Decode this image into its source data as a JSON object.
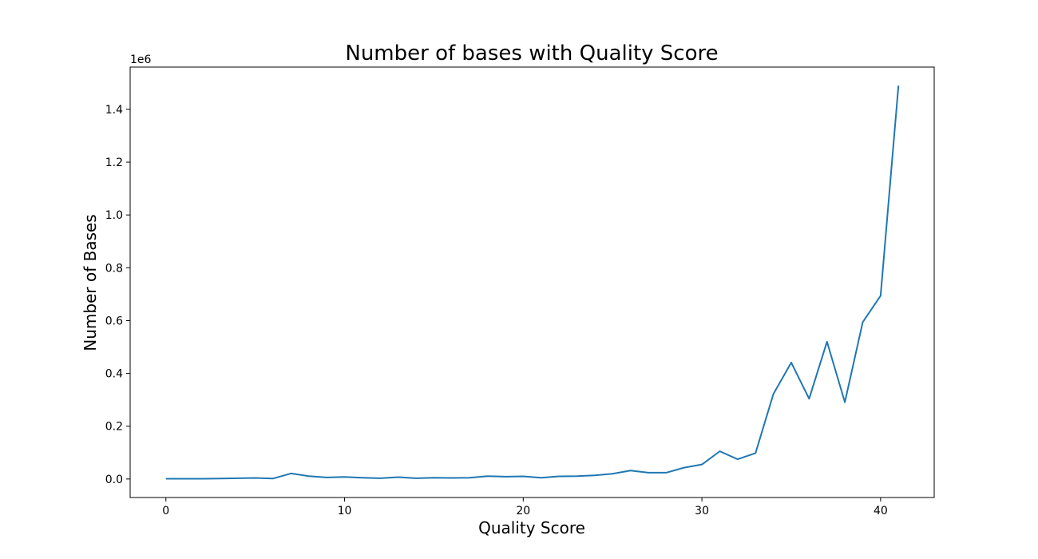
{
  "chart_data": {
    "type": "line",
    "title": "Number of bases with Quality Score",
    "xlabel": "Quality Score",
    "ylabel": "Number of Bases",
    "y_offset_label": "1e6",
    "xlim": [
      -2,
      43
    ],
    "ylim": [
      -0.07,
      1.56
    ],
    "x_ticks": [
      0,
      10,
      20,
      30,
      40
    ],
    "y_ticks": [
      0.0,
      0.2,
      0.4,
      0.6,
      0.8,
      1.0,
      1.2,
      1.4
    ],
    "x_tick_labels": [
      "0",
      "10",
      "20",
      "30",
      "40"
    ],
    "y_tick_labels": [
      "0.0",
      "0.2",
      "0.4",
      "0.6",
      "0.8",
      "1.0",
      "1.2",
      "1.4"
    ],
    "grid": false,
    "color": "#1f77b4",
    "series": [
      {
        "x": [
          0,
          1,
          2,
          3,
          4,
          5,
          6,
          7,
          8,
          9,
          10,
          11,
          12,
          13,
          14,
          15,
          16,
          17,
          18,
          19,
          20,
          21,
          22,
          23,
          24,
          25,
          26,
          27,
          28,
          29,
          30,
          31,
          32,
          33,
          34,
          35,
          36,
          37,
          38,
          39,
          40,
          41
        ],
        "values": [
          0.001,
          0.001,
          0.001,
          0.002,
          0.003,
          0.004,
          0.002,
          0.021,
          0.011,
          0.006,
          0.008,
          0.005,
          0.003,
          0.007,
          0.003,
          0.005,
          0.004,
          0.005,
          0.011,
          0.009,
          0.01,
          0.005,
          0.01,
          0.011,
          0.014,
          0.02,
          0.032,
          0.024,
          0.024,
          0.043,
          0.055,
          0.105,
          0.075,
          0.098,
          0.322,
          0.441,
          0.304,
          0.52,
          0.291,
          0.594,
          0.694,
          1.49
        ]
      }
    ]
  }
}
